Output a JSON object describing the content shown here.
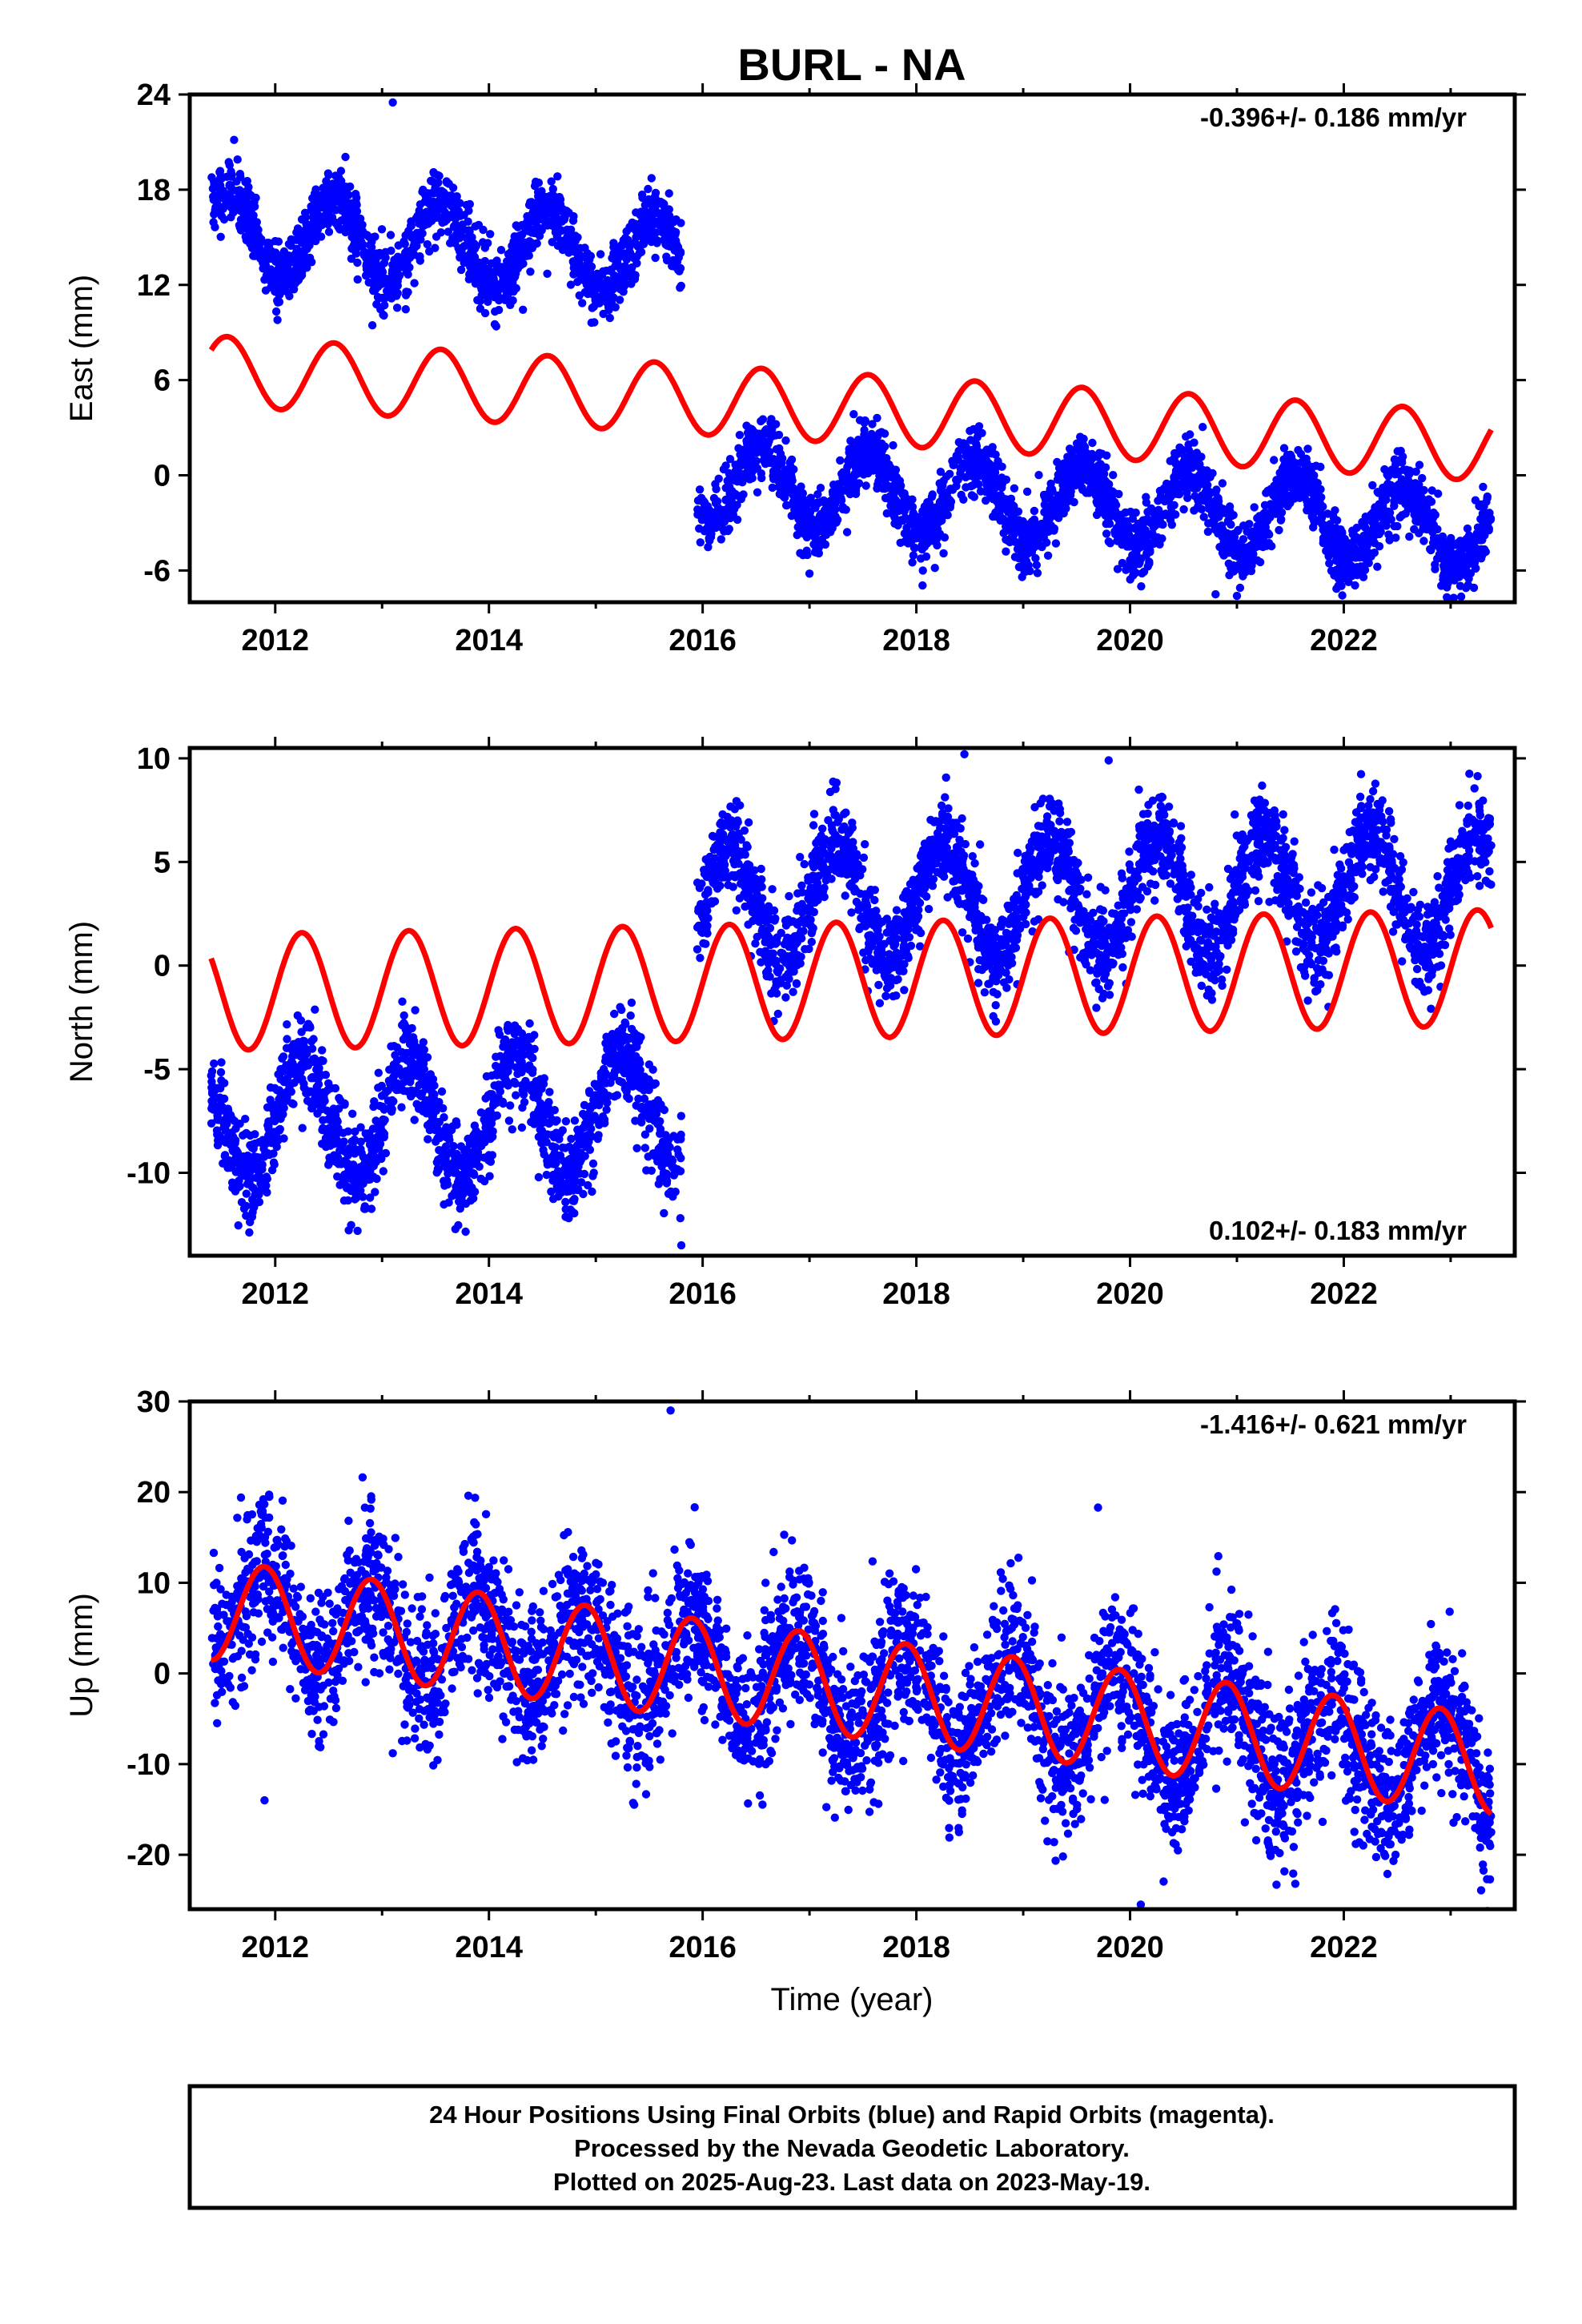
{
  "title": "BURL - NA",
  "xlabel": "Time (year)",
  "footer": {
    "line1": "24 Hour Positions Using Final Orbits (blue) and Rapid Orbits (magenta).",
    "line2": "Processed by the Nevada Geodetic Laboratory.",
    "line3": "Plotted on 2025-Aug-23. Last data on 2023-May-19."
  },
  "colors": {
    "observations": "#0000ff",
    "model": "#ff0000",
    "frame": "#000000"
  },
  "chart_data": [
    {
      "type": "scatter",
      "ylabel": "East (mm)",
      "rate_label": "-0.396+/- 0.186 mm/yr",
      "rate_position": "top-right",
      "xlim": [
        2011.2,
        2023.6
      ],
      "ylim": [
        -8,
        24
      ],
      "xticks": [
        2012,
        2014,
        2016,
        2018,
        2020,
        2022
      ],
      "yticks": [
        -6,
        0,
        6,
        12,
        18,
        24
      ],
      "grid": false,
      "series": [
        {
          "role": "observations",
          "segments": [
            {
              "start": 2011.4,
              "end": 2015.8,
              "offset": 15.5,
              "trend": -0.4,
              "amplitude": 2.5,
              "phase": 0.3,
              "noise": 1.0,
              "count": 1600
            },
            {
              "start": 2015.95,
              "end": 2023.38,
              "offset": -0.4,
              "trend": -0.4,
              "amplitude": 2.5,
              "phase": 0.3,
              "noise": 1.0,
              "count": 2700
            }
          ],
          "outliers": [
            [
              2013.1,
              23.5
            ],
            [
              2020.8,
              -7.5
            ],
            [
              2021.0,
              -7.6
            ],
            [
              2017.0,
              -6.2
            ]
          ]
        },
        {
          "role": "model",
          "segments": [
            {
              "start": 2011.4,
              "end": 2023.38,
              "offset": 6.6,
              "trend": -0.4,
              "amplitude": 2.2,
              "phase": 0.3
            }
          ]
        }
      ]
    },
    {
      "type": "scatter",
      "ylabel": "North (mm)",
      "rate_label": "0.102+/- 0.183 mm/yr",
      "rate_position": "bottom-right",
      "xlim": [
        2011.2,
        2023.6
      ],
      "ylim": [
        -14,
        10.5
      ],
      "xticks": [
        2012,
        2014,
        2016,
        2018,
        2020,
        2022
      ],
      "yticks": [
        -10,
        -5,
        0,
        5,
        10
      ],
      "grid": false,
      "series": [
        {
          "role": "observations",
          "segments": [
            {
              "start": 2011.4,
              "end": 2015.8,
              "offset": -7.5,
              "trend": 0.1,
              "amplitude": 2.8,
              "phase": 0.0,
              "noise": 1.1,
              "count": 1600
            },
            {
              "start": 2015.95,
              "end": 2023.38,
              "offset": 3.0,
              "trend": 0.1,
              "amplitude": 2.8,
              "phase": 0.0,
              "noise": 1.1,
              "count": 2700
            }
          ],
          "outliers": [
            [
              2015.8,
              -13.5
            ],
            [
              2018.45,
              10.2
            ],
            [
              2019.8,
              9.9
            ]
          ]
        },
        {
          "role": "model",
          "segments": [
            {
              "start": 2011.4,
              "end": 2023.38,
              "offset": -1.3,
              "trend": 0.1,
              "amplitude": 2.8,
              "phase": 0.0
            }
          ]
        }
      ]
    },
    {
      "type": "scatter",
      "ylabel": "Up (mm)",
      "rate_label": "-1.416+/- 0.621 mm/yr",
      "rate_position": "top-right",
      "xlim": [
        2011.2,
        2023.6
      ],
      "ylim": [
        -26,
        30
      ],
      "xticks": [
        2012,
        2014,
        2016,
        2018,
        2020,
        2022
      ],
      "yticks": [
        -20,
        -10,
        0,
        10,
        20,
        30
      ],
      "grid": false,
      "series": [
        {
          "role": "observations",
          "segments": [
            {
              "start": 2011.4,
              "end": 2023.38,
              "offset": 7.0,
              "trend": -1.42,
              "amplitude": 5.5,
              "phase": 0.65,
              "noise": 4.2,
              "count": 4200
            }
          ],
          "outliers": [
            [
              2015.7,
              29
            ],
            [
              2019.7,
              18.3
            ],
            [
              2020.1,
              -25.5
            ],
            [
              2011.9,
              -14
            ],
            [
              2013.1,
              -8.8
            ]
          ]
        },
        {
          "role": "model",
          "segments": [
            {
              "start": 2011.4,
              "end": 2023.38,
              "offset": 7.0,
              "trend": -1.42,
              "amplitude": 5.5,
              "phase": 0.65
            }
          ]
        }
      ]
    }
  ]
}
